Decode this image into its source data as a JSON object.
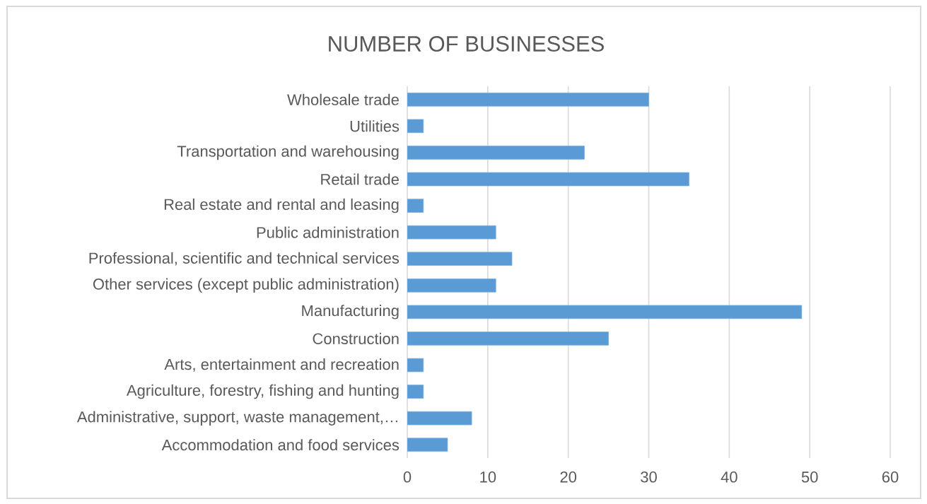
{
  "chart_data": {
    "type": "bar",
    "orientation": "horizontal",
    "title": "NUMBER OF BUSINESSES",
    "categories": [
      "Wholesale trade",
      "Utilities",
      "Transportation and warehousing",
      "Retail trade",
      "Real estate and rental and leasing",
      "Public administration",
      "Professional, scientific and technical services",
      "Other services (except public administration)",
      "Manufacturing",
      "Construction",
      "Arts, entertainment and recreation",
      "Agriculture, forestry, fishing and hunting",
      "Administrative, support, waste management,…",
      "Accommodation and food services"
    ],
    "values": [
      30,
      2,
      22,
      35,
      2,
      11,
      13,
      11,
      49,
      25,
      2,
      2,
      8,
      5
    ],
    "color": "#5b9bd5",
    "xlim": [
      0,
      60
    ],
    "xticks": [
      0,
      10,
      20,
      30,
      40,
      50,
      60
    ],
    "grid": "x"
  }
}
